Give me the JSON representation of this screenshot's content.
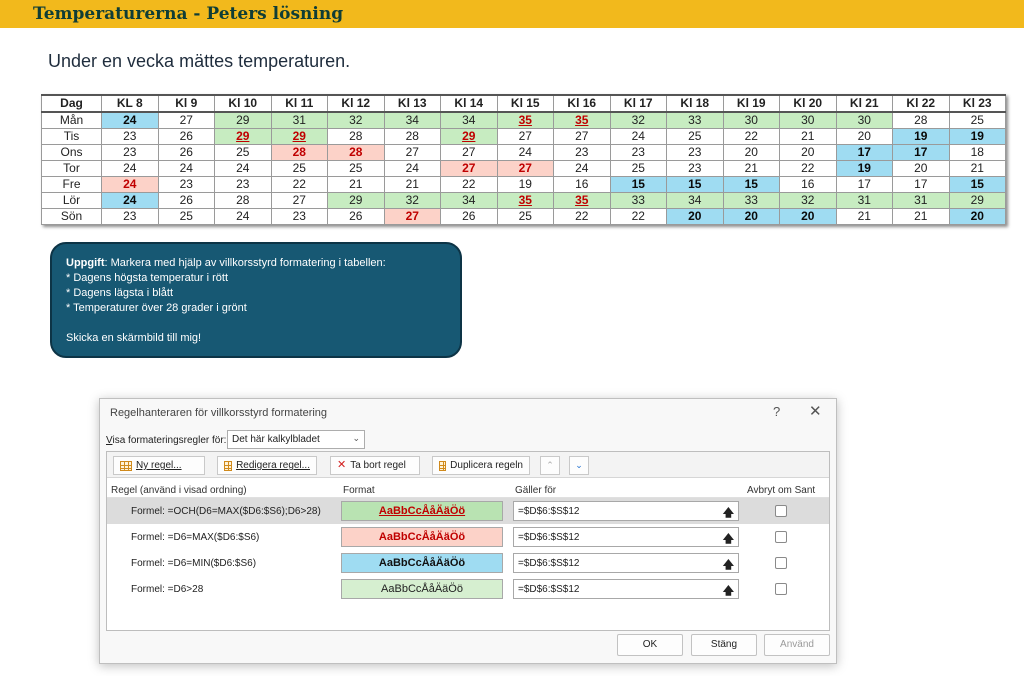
{
  "header": {
    "title": "Temperaturerna - Peters lösning"
  },
  "subtitle": "Under en vecka mättes temperaturen.",
  "table": {
    "headers": [
      "Dag",
      "KL 8",
      "Kl 9",
      "Kl 10",
      "Kl 11",
      "Kl 12",
      "Kl 13",
      "Kl 14",
      "Kl 15",
      "Kl 16",
      "Kl 17",
      "Kl 18",
      "Kl 19",
      "Kl 20",
      "Kl 21",
      "Kl 22",
      "Kl 23"
    ],
    "rows": [
      {
        "day": "Mån",
        "cells": [
          {
            "v": "24",
            "s": "blue"
          },
          {
            "v": "27",
            "s": ""
          },
          {
            "v": "29",
            "s": "green"
          },
          {
            "v": "31",
            "s": "green"
          },
          {
            "v": "32",
            "s": "green"
          },
          {
            "v": "34",
            "s": "green"
          },
          {
            "v": "34",
            "s": "green"
          },
          {
            "v": "35",
            "s": "rg"
          },
          {
            "v": "35",
            "s": "rg"
          },
          {
            "v": "32",
            "s": "green"
          },
          {
            "v": "33",
            "s": "green"
          },
          {
            "v": "30",
            "s": "green"
          },
          {
            "v": "30",
            "s": "green"
          },
          {
            "v": "30",
            "s": "green"
          },
          {
            "v": "28",
            "s": ""
          },
          {
            "v": "25",
            "s": ""
          }
        ]
      },
      {
        "day": "Tis",
        "cells": [
          {
            "v": "23",
            "s": ""
          },
          {
            "v": "26",
            "s": ""
          },
          {
            "v": "29",
            "s": "rg"
          },
          {
            "v": "29",
            "s": "rg"
          },
          {
            "v": "28",
            "s": ""
          },
          {
            "v": "28",
            "s": ""
          },
          {
            "v": "29",
            "s": "rg"
          },
          {
            "v": "27",
            "s": ""
          },
          {
            "v": "27",
            "s": ""
          },
          {
            "v": "24",
            "s": ""
          },
          {
            "v": "25",
            "s": ""
          },
          {
            "v": "22",
            "s": ""
          },
          {
            "v": "21",
            "s": ""
          },
          {
            "v": "20",
            "s": ""
          },
          {
            "v": "19",
            "s": "blue"
          },
          {
            "v": "19",
            "s": "blue"
          }
        ]
      },
      {
        "day": "Ons",
        "cells": [
          {
            "v": "23",
            "s": ""
          },
          {
            "v": "26",
            "s": ""
          },
          {
            "v": "25",
            "s": ""
          },
          {
            "v": "28",
            "s": "red"
          },
          {
            "v": "28",
            "s": "red"
          },
          {
            "v": "27",
            "s": ""
          },
          {
            "v": "27",
            "s": ""
          },
          {
            "v": "24",
            "s": ""
          },
          {
            "v": "23",
            "s": ""
          },
          {
            "v": "23",
            "s": ""
          },
          {
            "v": "23",
            "s": ""
          },
          {
            "v": "20",
            "s": ""
          },
          {
            "v": "20",
            "s": ""
          },
          {
            "v": "17",
            "s": "blue"
          },
          {
            "v": "17",
            "s": "blue"
          },
          {
            "v": "18",
            "s": ""
          }
        ]
      },
      {
        "day": "Tor",
        "cells": [
          {
            "v": "24",
            "s": ""
          },
          {
            "v": "24",
            "s": ""
          },
          {
            "v": "24",
            "s": ""
          },
          {
            "v": "25",
            "s": ""
          },
          {
            "v": "25",
            "s": ""
          },
          {
            "v": "24",
            "s": ""
          },
          {
            "v": "27",
            "s": "red"
          },
          {
            "v": "27",
            "s": "red"
          },
          {
            "v": "24",
            "s": ""
          },
          {
            "v": "25",
            "s": ""
          },
          {
            "v": "23",
            "s": ""
          },
          {
            "v": "21",
            "s": ""
          },
          {
            "v": "22",
            "s": ""
          },
          {
            "v": "19",
            "s": "blue"
          },
          {
            "v": "20",
            "s": ""
          },
          {
            "v": "21",
            "s": ""
          }
        ]
      },
      {
        "day": "Fre",
        "cells": [
          {
            "v": "24",
            "s": "red"
          },
          {
            "v": "23",
            "s": ""
          },
          {
            "v": "23",
            "s": ""
          },
          {
            "v": "22",
            "s": ""
          },
          {
            "v": "21",
            "s": ""
          },
          {
            "v": "21",
            "s": ""
          },
          {
            "v": "22",
            "s": ""
          },
          {
            "v": "19",
            "s": ""
          },
          {
            "v": "16",
            "s": ""
          },
          {
            "v": "15",
            "s": "blue"
          },
          {
            "v": "15",
            "s": "blue"
          },
          {
            "v": "15",
            "s": "blue"
          },
          {
            "v": "16",
            "s": ""
          },
          {
            "v": "17",
            "s": ""
          },
          {
            "v": "17",
            "s": ""
          },
          {
            "v": "15",
            "s": "blue"
          }
        ]
      },
      {
        "day": "Lör",
        "cells": [
          {
            "v": "24",
            "s": "blue"
          },
          {
            "v": "26",
            "s": ""
          },
          {
            "v": "28",
            "s": ""
          },
          {
            "v": "27",
            "s": ""
          },
          {
            "v": "29",
            "s": "green"
          },
          {
            "v": "32",
            "s": "green"
          },
          {
            "v": "34",
            "s": "green"
          },
          {
            "v": "35",
            "s": "rg"
          },
          {
            "v": "35",
            "s": "rg"
          },
          {
            "v": "33",
            "s": "green"
          },
          {
            "v": "34",
            "s": "green"
          },
          {
            "v": "33",
            "s": "green"
          },
          {
            "v": "32",
            "s": "green"
          },
          {
            "v": "31",
            "s": "green"
          },
          {
            "v": "31",
            "s": "green"
          },
          {
            "v": "29",
            "s": "green"
          }
        ]
      },
      {
        "day": "Sön",
        "cells": [
          {
            "v": "23",
            "s": ""
          },
          {
            "v": "25",
            "s": ""
          },
          {
            "v": "24",
            "s": ""
          },
          {
            "v": "23",
            "s": ""
          },
          {
            "v": "26",
            "s": ""
          },
          {
            "v": "27",
            "s": "red"
          },
          {
            "v": "26",
            "s": ""
          },
          {
            "v": "25",
            "s": ""
          },
          {
            "v": "22",
            "s": ""
          },
          {
            "v": "22",
            "s": ""
          },
          {
            "v": "20",
            "s": "blue"
          },
          {
            "v": "20",
            "s": "blue"
          },
          {
            "v": "20",
            "s": "blue"
          },
          {
            "v": "21",
            "s": ""
          },
          {
            "v": "21",
            "s": ""
          },
          {
            "v": "20",
            "s": "blue"
          }
        ]
      }
    ]
  },
  "task": {
    "label": "Uppgift",
    "lines": [
      ": Markera med hjälp av villkorsstyrd formatering i tabellen:",
      "* Dagens högsta temperatur i rött",
      "* Dagens lägsta i blått",
      "* Temperaturer över 28 grader i grönt",
      "Skicka en skärmbild till mig!"
    ]
  },
  "dialog": {
    "title": "Regelhanteraren för villkorsstyrd formatering",
    "help": "?",
    "close": "✕",
    "show_label_u": "V",
    "show_label_rest": "isa formateringsregler för:",
    "scope": "Det här kalkylbladet",
    "toolbar": {
      "new_rule": "Ny regel...",
      "edit_rule": "Redigera regel...",
      "delete_rule": "Ta bort regel",
      "duplicate_rule": "Duplicera regeln",
      "up": "⌃",
      "down": "⌄"
    },
    "columns": {
      "rule": "Regel (använd i visad ordning)",
      "format": "Format",
      "applies": "Gäller för",
      "stop": "Avbryt om Sant"
    },
    "rules": [
      {
        "name": "Formel: =OCH(D6=MAX($D6:$S6);D6>28)",
        "preview": "AaBbCcÅåÄäÖö",
        "applies": "=$D$6:$S$12"
      },
      {
        "name": "Formel: =D6=MAX($D6:$S6)",
        "preview": "AaBbCcÅåÄäÖö",
        "applies": "=$D$6:$S$12"
      },
      {
        "name": "Formel: =D6=MIN($D6:$S6)",
        "preview": "AaBbCcÅåÄäÖö",
        "applies": "=$D$6:$S$12"
      },
      {
        "name": "Formel: =D6>28",
        "preview": "AaBbCcÅåÄäÖö",
        "applies": "=$D$6:$S$12"
      }
    ],
    "buttons": {
      "ok": "OK",
      "close": "Stäng",
      "apply": "Använd"
    }
  }
}
